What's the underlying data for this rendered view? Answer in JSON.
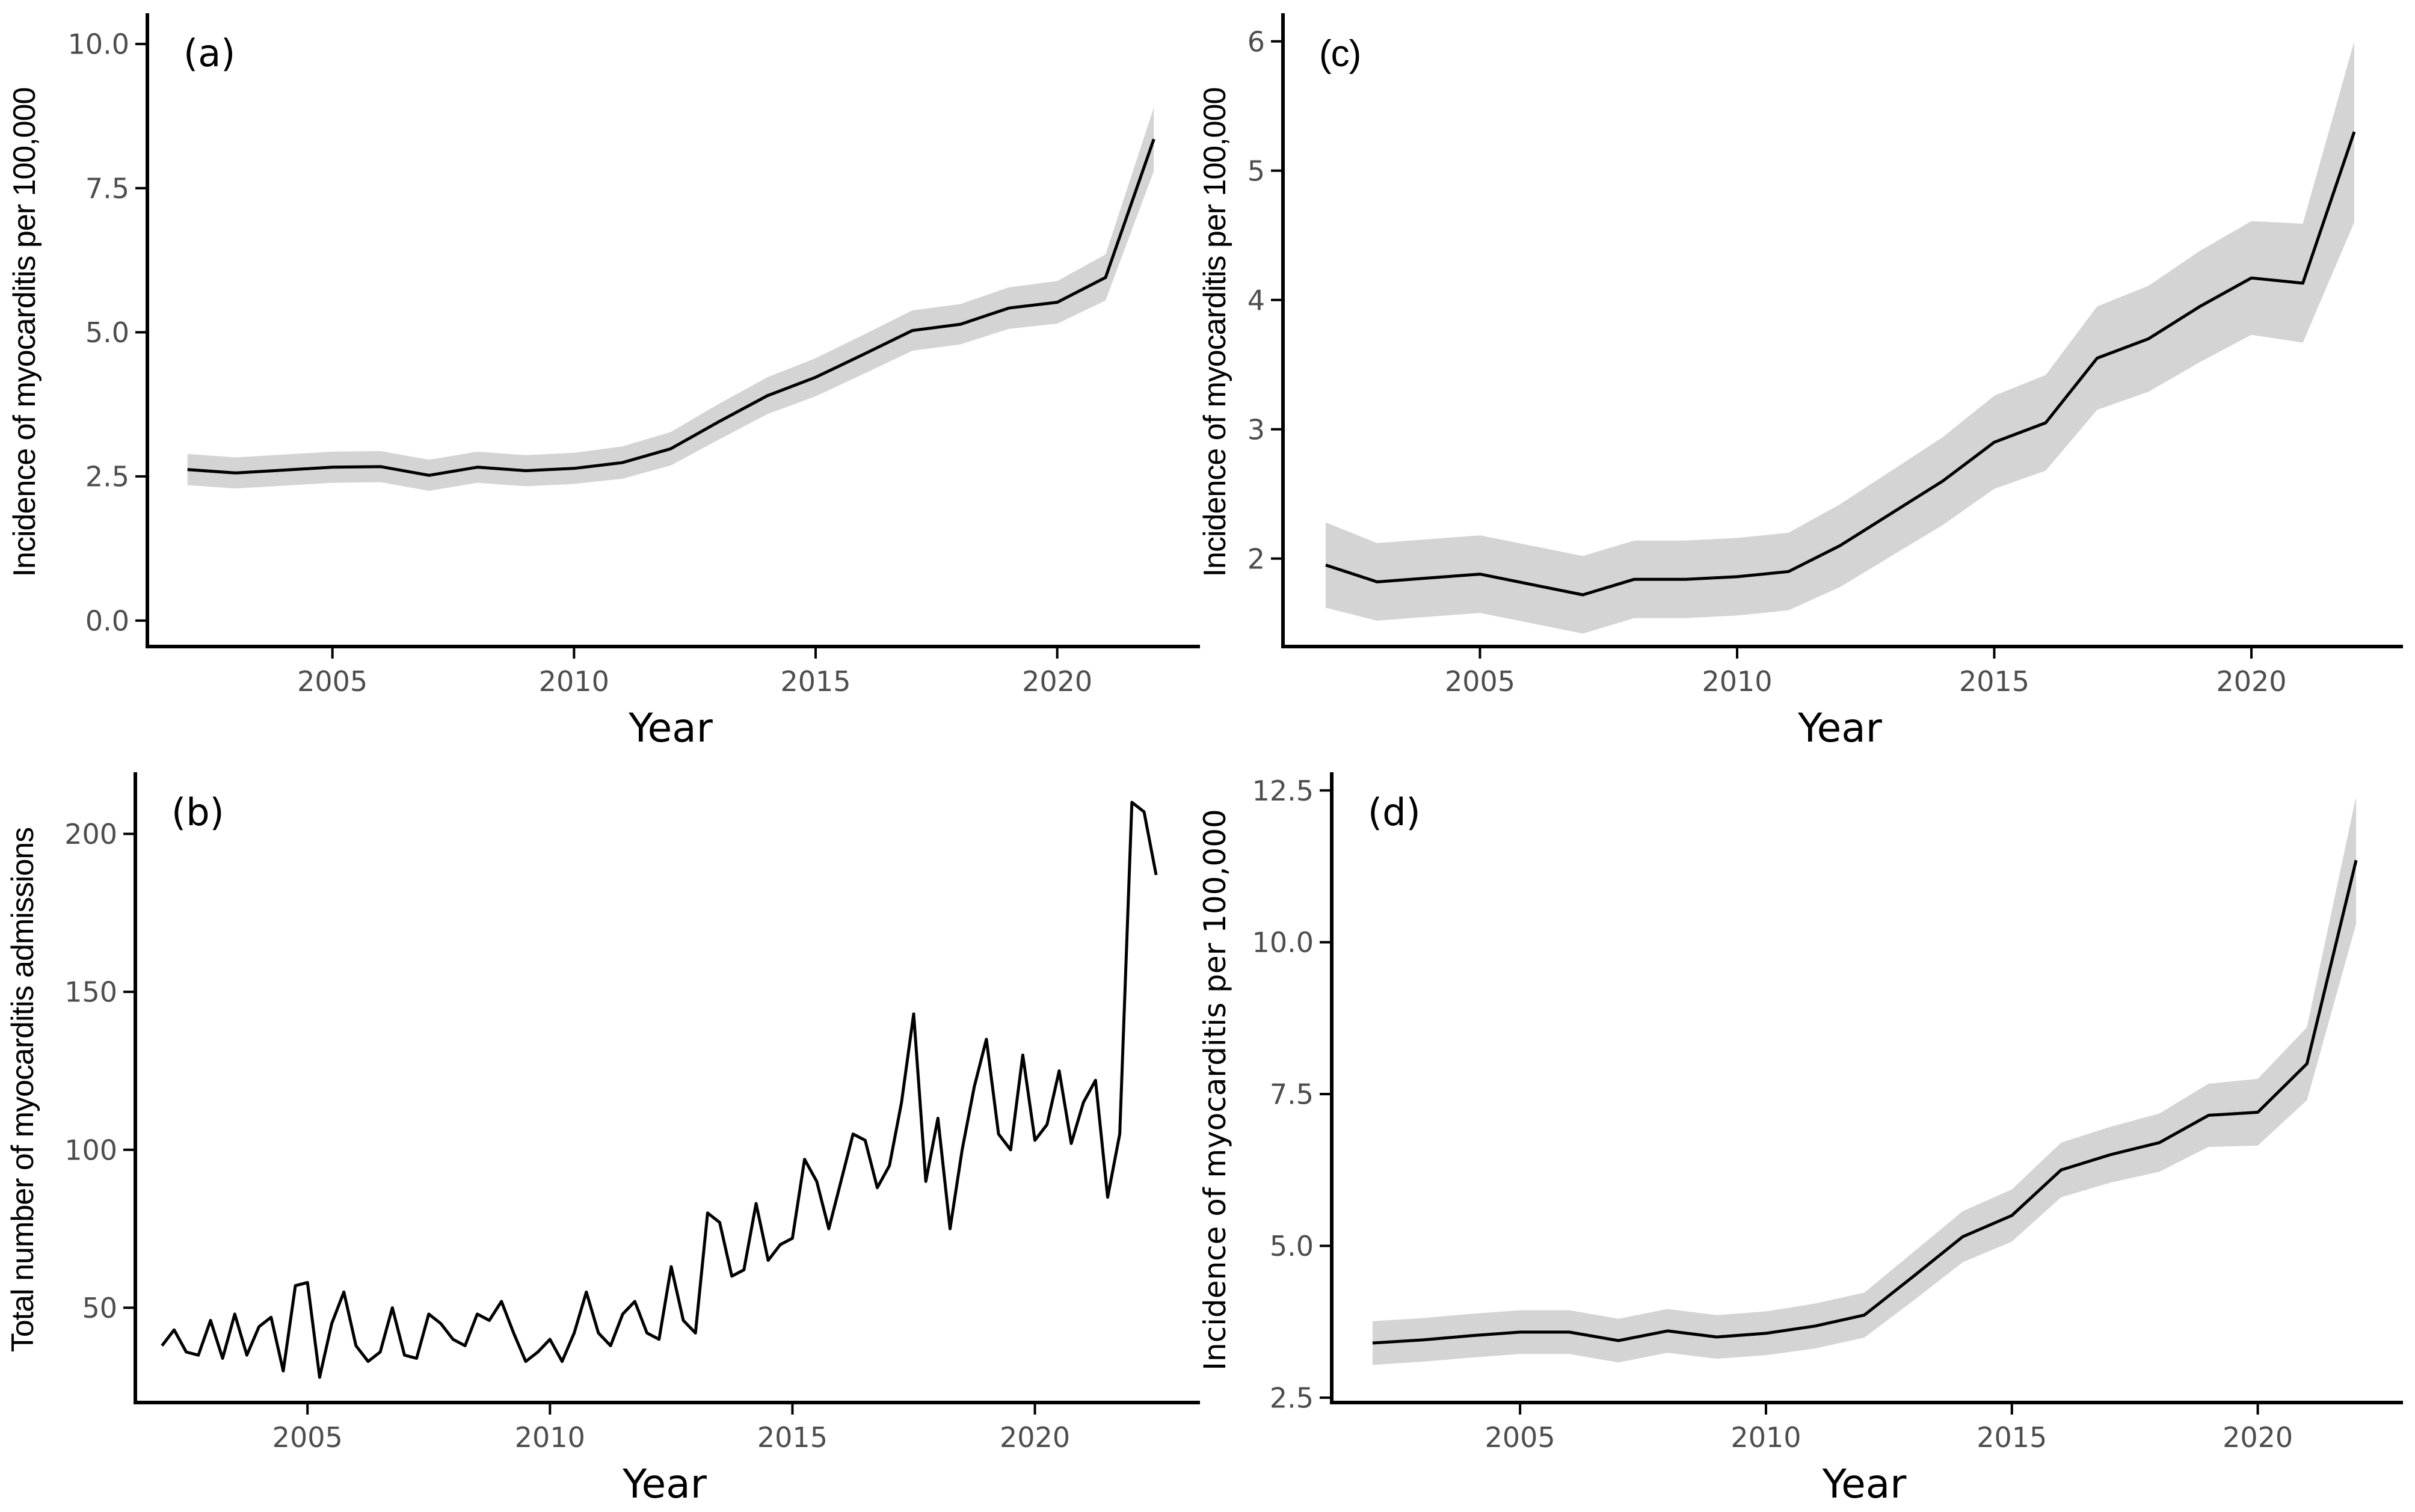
{
  "style": {
    "background": "#ffffff",
    "line_color": "#000000",
    "ribbon_color": "#d4d4d4",
    "axis_color": "#000000",
    "tick_label_color": "#4d4d4d",
    "title_color": "#000000",
    "line_width": 5,
    "axis_width": 6,
    "tick_length": 20
  },
  "chart_data": [
    {
      "id": "a",
      "type": "line",
      "tag": "(a)",
      "xlabel": "Year",
      "ylabel": "Incidence of myocarditis per 100,000",
      "x_start": 2002,
      "x_step": 1,
      "values": [
        2.62,
        2.56,
        2.61,
        2.66,
        2.67,
        2.52,
        2.66,
        2.6,
        2.64,
        2.74,
        2.98,
        3.45,
        3.9,
        4.22,
        4.62,
        5.03,
        5.14,
        5.42,
        5.52,
        5.95,
        8.35
      ],
      "ci_lower": [
        2.35,
        2.29,
        2.34,
        2.39,
        2.4,
        2.25,
        2.39,
        2.33,
        2.37,
        2.46,
        2.69,
        3.14,
        3.58,
        3.89,
        4.28,
        4.68,
        4.79,
        5.06,
        5.15,
        5.55,
        7.8
      ],
      "ci_upper": [
        2.89,
        2.83,
        2.88,
        2.93,
        2.94,
        2.79,
        2.93,
        2.87,
        2.91,
        3.02,
        3.27,
        3.76,
        4.22,
        4.55,
        4.96,
        5.38,
        5.49,
        5.78,
        5.89,
        6.35,
        8.9
      ],
      "xlim": [
        2001.17,
        2022.83
      ],
      "ylim": [
        -0.45,
        10.45
      ],
      "xticks": [
        2005,
        2010,
        2015,
        2020
      ],
      "xtick_labels": [
        "2005",
        "2010",
        "2015",
        "2020"
      ],
      "yticks": [
        0.0,
        2.5,
        5.0,
        7.5,
        10.0
      ],
      "ytick_labels": [
        "0.0",
        "2.5",
        "5.0",
        "7.5",
        "10.0"
      ],
      "grid": false,
      "legend": "none",
      "layout": {
        "margin": {
          "l": 245,
          "r": 22,
          "t": 30,
          "b": 182
        },
        "ytitle_x": 58,
        "fonts": {
          "ticks": "wide",
          "ytitle": "cond",
          "xtitle": "wide",
          "tag": "wide"
        },
        "sizes": {
          "ticks": 46,
          "ytitle": 52,
          "xtitle": 66,
          "tag": 62
        }
      }
    },
    {
      "id": "c",
      "type": "line",
      "tag": "(c)",
      "xlabel": "Year",
      "ylabel": "Incidence of myocarditis per 100,000",
      "x_start": 2002,
      "x_step": 1,
      "values": [
        1.95,
        1.82,
        1.85,
        1.88,
        1.8,
        1.72,
        1.84,
        1.84,
        1.86,
        1.9,
        2.1,
        2.35,
        2.6,
        2.9,
        3.05,
        3.55,
        3.7,
        3.95,
        4.17,
        4.13,
        5.3
      ],
      "ci_lower": [
        1.62,
        1.52,
        1.55,
        1.58,
        1.5,
        1.42,
        1.54,
        1.54,
        1.56,
        1.6,
        1.78,
        2.02,
        2.26,
        2.54,
        2.68,
        3.15,
        3.29,
        3.52,
        3.73,
        3.67,
        4.6
      ],
      "ci_upper": [
        2.28,
        2.12,
        2.15,
        2.18,
        2.1,
        2.02,
        2.14,
        2.14,
        2.16,
        2.2,
        2.42,
        2.68,
        2.94,
        3.26,
        3.42,
        3.95,
        4.11,
        4.38,
        4.61,
        4.59,
        6.0
      ],
      "xlim": [
        2001.17,
        2022.83
      ],
      "ylim": [
        1.32,
        6.18
      ],
      "xticks": [
        2005,
        2010,
        2015,
        2020
      ],
      "xtick_labels": [
        "2005",
        "2010",
        "2015",
        "2020"
      ],
      "yticks": [
        2,
        3,
        4,
        5,
        6
      ],
      "ytick_labels": [
        "2",
        "3",
        "4",
        "5",
        "6"
      ],
      "grid": false,
      "legend": "none",
      "layout": {
        "margin": {
          "l": 126,
          "r": 30,
          "t": 30,
          "b": 182
        },
        "ytitle_x": 30,
        "fonts": {
          "ticks": "wide",
          "ytitle": "cond",
          "xtitle": "wide",
          "tag": "cond"
        },
        "sizes": {
          "ticks": 46,
          "ytitle": 52,
          "xtitle": 66,
          "tag": 62
        }
      }
    },
    {
      "id": "b",
      "type": "line",
      "tag": "(b)",
      "xlabel": "Year",
      "ylabel": "Total number of myocarditis admissions",
      "x_start": 2002,
      "x_step": 0.25,
      "values": [
        38,
        43,
        36,
        35,
        46,
        34,
        48,
        35,
        44,
        47,
        30,
        57,
        58,
        28,
        45,
        55,
        38,
        33,
        36,
        50,
        35,
        34,
        48,
        45,
        40,
        38,
        48,
        46,
        52,
        42,
        33,
        36,
        40,
        33,
        42,
        55,
        42,
        38,
        48,
        52,
        42,
        40,
        63,
        46,
        42,
        80,
        77,
        60,
        62,
        83,
        65,
        70,
        72,
        97,
        90,
        75,
        90,
        105,
        103,
        88,
        95,
        115,
        143,
        90,
        110,
        75,
        100,
        120,
        135,
        105,
        100,
        130,
        103,
        108,
        125,
        102,
        115,
        122,
        85,
        105,
        210,
        207,
        187
      ],
      "xlim": [
        2001.45,
        2023.28
      ],
      "ylim": [
        20,
        218
      ],
      "xticks": [
        2005,
        2010,
        2015,
        2020
      ],
      "xtick_labels": [
        "2005",
        "2010",
        "2015",
        "2020"
      ],
      "yticks": [
        50,
        100,
        150,
        200
      ],
      "ytick_labels": [
        "50",
        "100",
        "150",
        "200"
      ],
      "grid": false,
      "legend": "none",
      "layout": {
        "margin": {
          "l": 225,
          "r": 22,
          "t": 35,
          "b": 182
        },
        "ytitle_x": 55,
        "fonts": {
          "ticks": "wide",
          "ytitle": "cond",
          "xtitle": "wide",
          "tag": "wide"
        },
        "sizes": {
          "ticks": 46,
          "ytitle": 52,
          "xtitle": 66,
          "tag": 62
        }
      }
    },
    {
      "id": "d",
      "type": "line",
      "tag": "(d)",
      "xlabel": "Year",
      "ylabel": "Incidence of myocarditis per 100,000",
      "x_start": 2002,
      "x_step": 1,
      "values": [
        3.4,
        3.45,
        3.52,
        3.58,
        3.58,
        3.44,
        3.6,
        3.5,
        3.56,
        3.68,
        3.86,
        4.5,
        5.15,
        5.5,
        6.25,
        6.5,
        6.7,
        7.15,
        7.2,
        8.0,
        11.35
      ],
      "ci_lower": [
        3.04,
        3.09,
        3.16,
        3.22,
        3.22,
        3.08,
        3.24,
        3.14,
        3.2,
        3.31,
        3.49,
        4.1,
        4.73,
        5.07,
        5.8,
        6.04,
        6.22,
        6.63,
        6.65,
        7.4,
        10.3
      ],
      "ci_upper": [
        3.76,
        3.81,
        3.88,
        3.94,
        3.94,
        3.8,
        3.96,
        3.86,
        3.92,
        4.05,
        4.23,
        4.9,
        5.57,
        5.93,
        6.7,
        6.96,
        7.18,
        7.67,
        7.75,
        8.6,
        12.4
      ],
      "xlim": [
        2001.17,
        2022.83
      ],
      "ylim": [
        2.42,
        12.72
      ],
      "xticks": [
        2005,
        2010,
        2015,
        2020
      ],
      "xtick_labels": [
        "2005",
        "2010",
        "2015",
        "2020"
      ],
      "yticks": [
        2.5,
        5.0,
        7.5,
        10.0,
        12.5
      ],
      "ytick_labels": [
        "2.5",
        "5.0",
        "7.5",
        "10.0",
        "12.5"
      ],
      "grid": false,
      "legend": "none",
      "layout": {
        "margin": {
          "l": 207,
          "r": 30,
          "t": 35,
          "b": 182
        },
        "ytitle_x": 30,
        "fonts": {
          "ticks": "wide",
          "ytitle": "wide",
          "xtitle": "wide",
          "tag": "wide"
        },
        "sizes": {
          "ticks": 46,
          "ytitle": 50,
          "xtitle": 66,
          "tag": 62
        }
      }
    }
  ]
}
